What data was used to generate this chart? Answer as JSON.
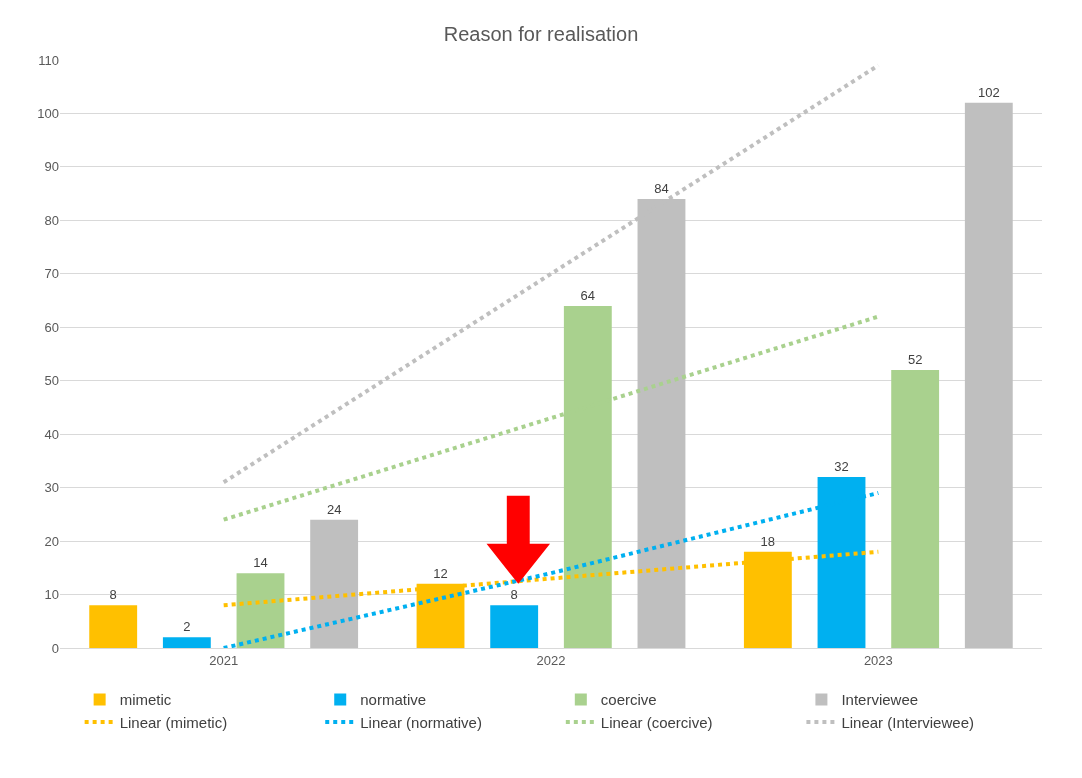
{
  "chart_data": {
    "type": "bar",
    "title": "Reason for realisation",
    "categories": [
      "2021",
      "2022",
      "2023"
    ],
    "series": [
      {
        "name": "mimetic",
        "color": "#ffc000",
        "values": [
          8,
          12,
          18
        ],
        "value_labels": [
          "8",
          "12",
          "18"
        ]
      },
      {
        "name": "normative",
        "color": "#00b0f0",
        "values": [
          2,
          8,
          32
        ],
        "value_labels": [
          "2",
          "8",
          "32"
        ]
      },
      {
        "name": "coercive",
        "color": "#a9d18e",
        "values": [
          14,
          64,
          52
        ],
        "value_labels": [
          "14",
          "64",
          "52"
        ]
      },
      {
        "name": "Interviewee",
        "color": "#bfbfbf",
        "values": [
          24,
          84,
          102
        ],
        "value_labels": [
          "24",
          "84",
          "102"
        ]
      },
      {
        "name": "Linear (mimetic)",
        "type": "line",
        "line_style": "dotted",
        "color": "#ffc000",
        "values": [
          8,
          13,
          18
        ]
      },
      {
        "name": "Linear (normative)",
        "type": "line",
        "line_style": "dotted",
        "color": "#00b0f0",
        "values": [
          0,
          14,
          29
        ]
      },
      {
        "name": "Linear (coercive)",
        "type": "line",
        "line_style": "dotted",
        "color": "#a9d18e",
        "values": [
          24,
          43,
          62
        ]
      },
      {
        "name": "Linear (Interviewee)",
        "type": "line",
        "line_style": "dotted",
        "color": "#bfbfbf",
        "values": [
          31,
          70,
          109
        ]
      }
    ],
    "ylim": [
      0,
      110
    ],
    "yticks": [
      0,
      10,
      20,
      30,
      40,
      50,
      60,
      70,
      80,
      90,
      100,
      110
    ],
    "grid": "y",
    "legend": "bottom",
    "marker": "none"
  }
}
